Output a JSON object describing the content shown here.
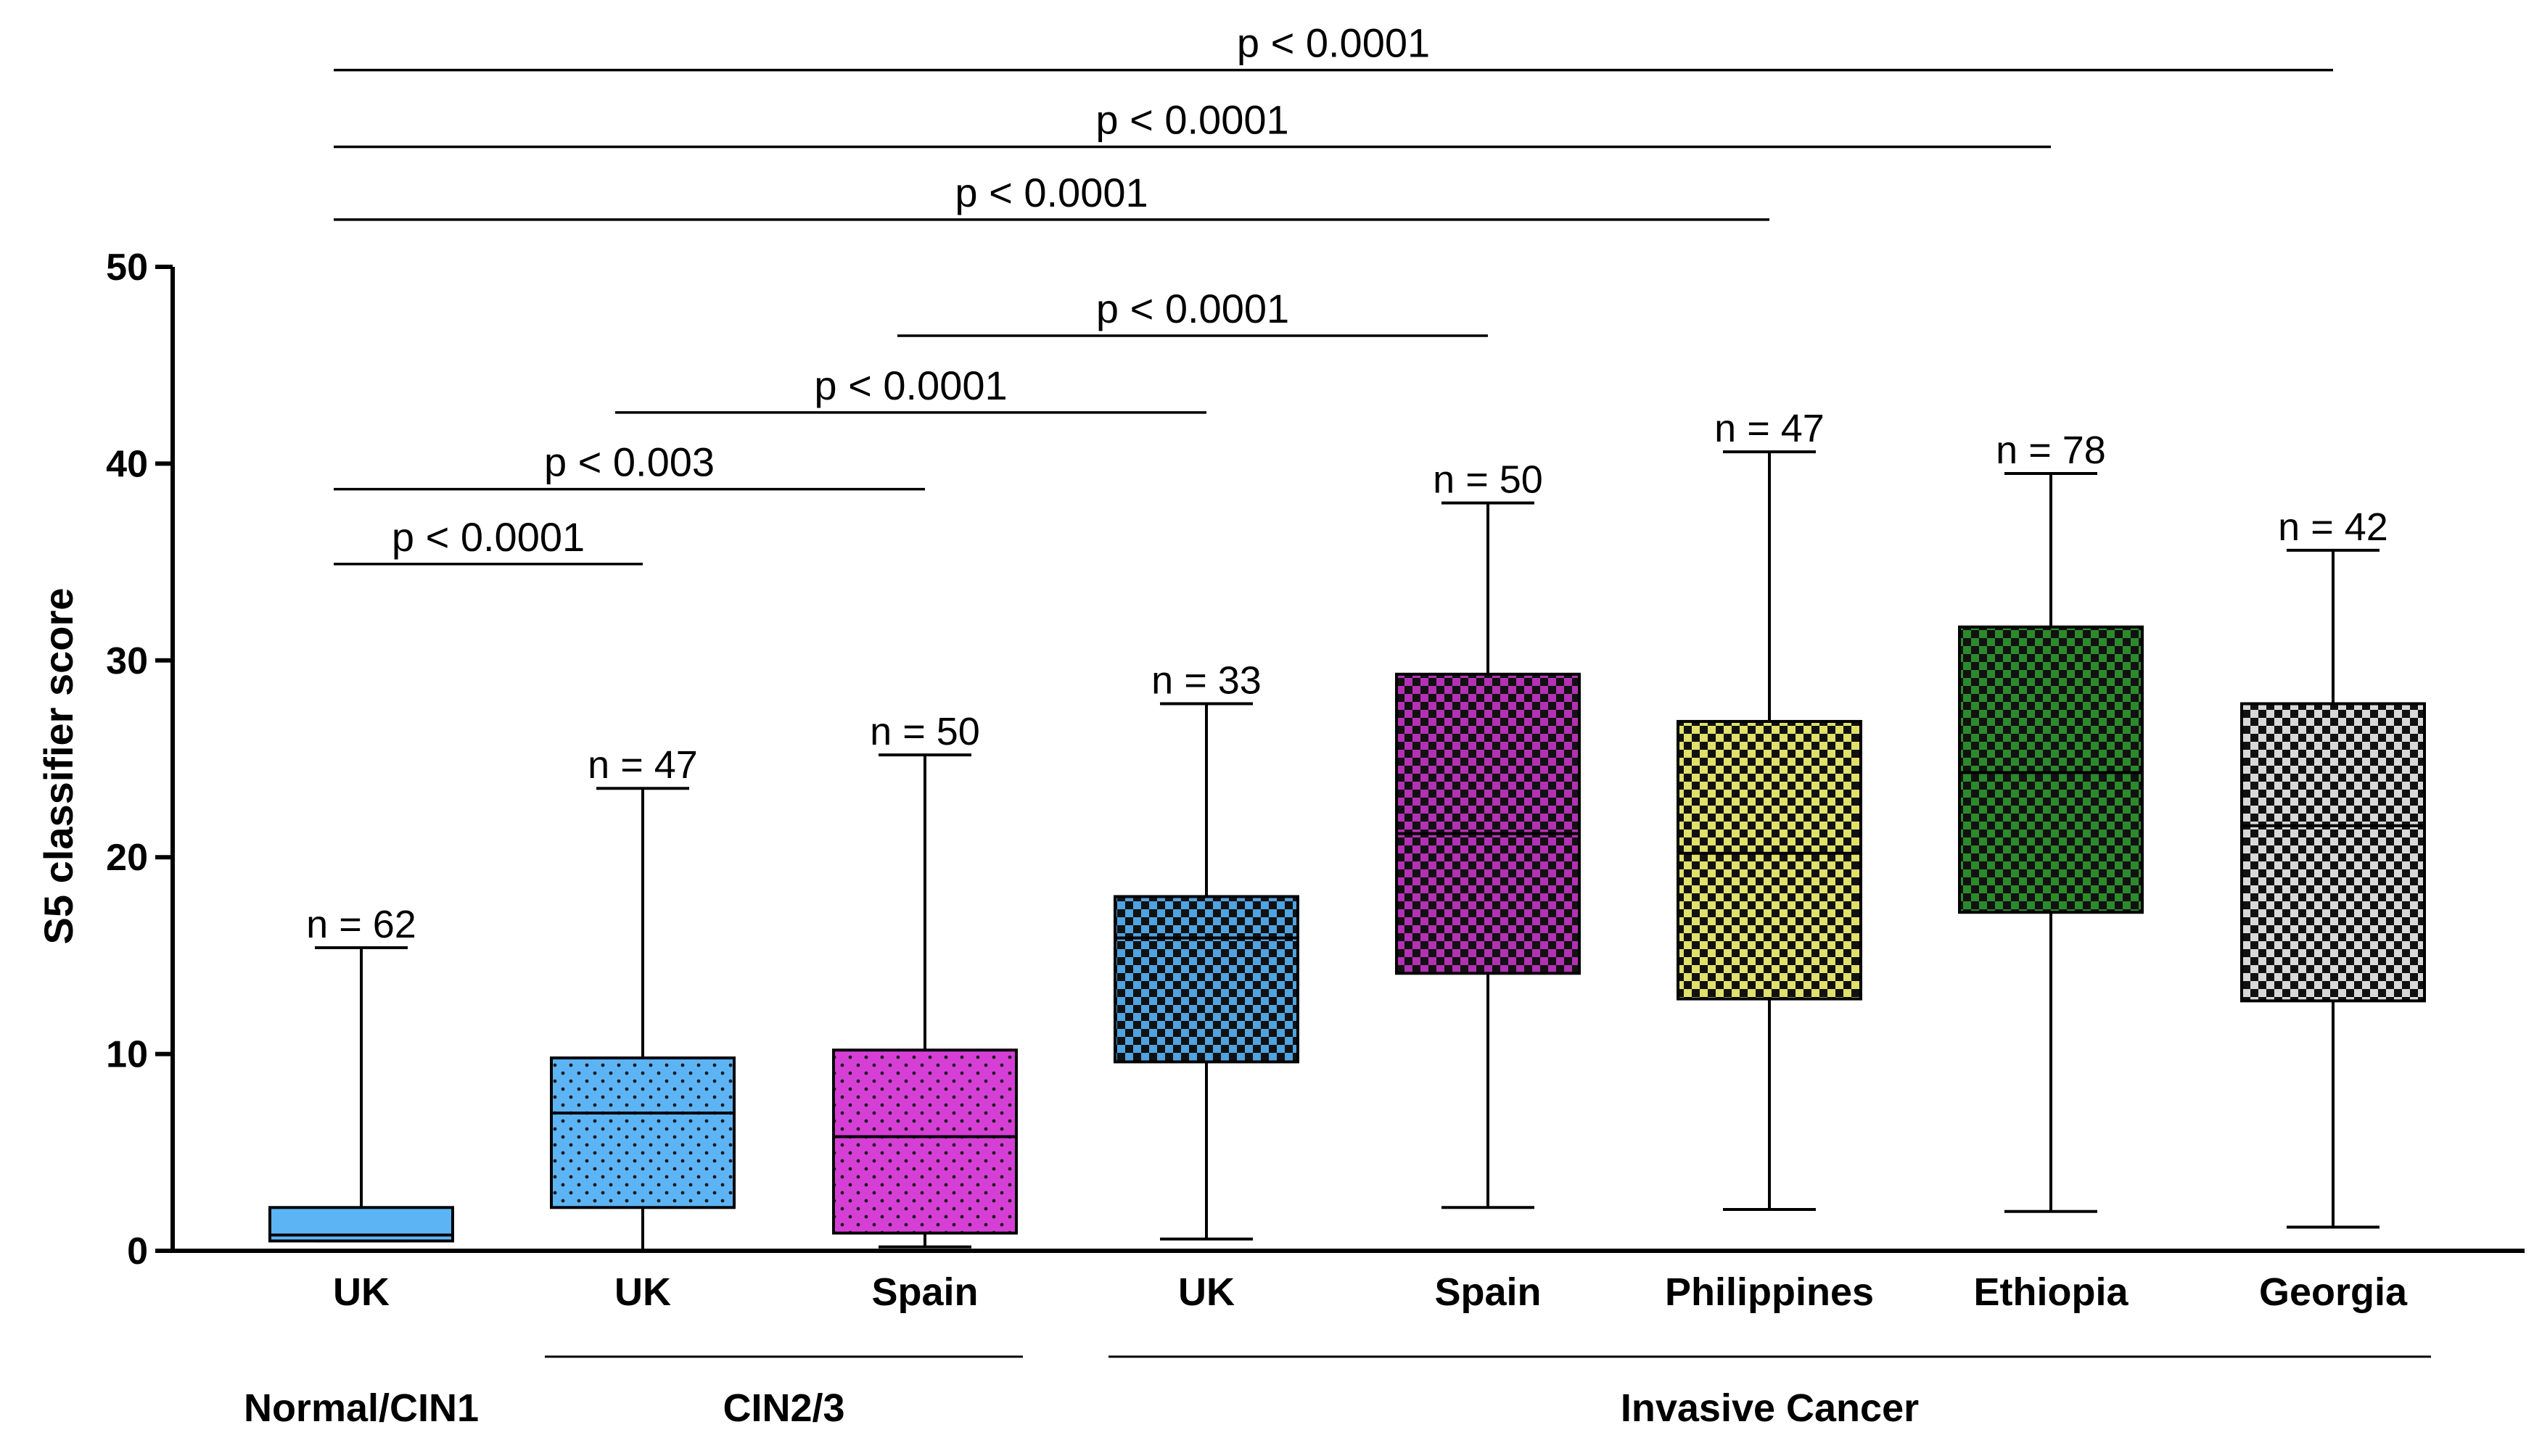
{
  "chart_data": {
    "type": "box",
    "ylabel": "S5 classifier score",
    "xlabel": "",
    "ylim": [
      0,
      50
    ],
    "yticks": [
      0,
      10,
      20,
      30,
      40,
      50
    ],
    "boxes": [
      {
        "label": "UK",
        "group": "Normal/CIN1",
        "n_label": "n = 62",
        "min": 0.5,
        "q1": 0.5,
        "median": 0.8,
        "q3": 2.2,
        "max": 15.4,
        "pattern": "solid",
        "color": "#5db4f5"
      },
      {
        "label": "UK",
        "group": "CIN2/3",
        "n_label": "n = 47",
        "min": 0.0,
        "q1": 2.2,
        "median": 7.0,
        "q3": 9.8,
        "max": 23.5,
        "pattern": "dots",
        "color": "#5db4f5"
      },
      {
        "label": "Spain",
        "group": "CIN2/3",
        "n_label": "n = 50",
        "min": 0.2,
        "q1": 0.9,
        "median": 5.8,
        "q3": 10.2,
        "max": 25.2,
        "pattern": "dots",
        "color": "#d63fd6"
      },
      {
        "label": "UK",
        "group": "Invasive Cancer",
        "n_label": "n = 33",
        "min": 0.6,
        "q1": 9.6,
        "median": 15.9,
        "q3": 18.0,
        "max": 27.8,
        "pattern": "checker",
        "color": "#4fa3e0"
      },
      {
        "label": "Spain",
        "group": "Invasive Cancer",
        "n_label": "n = 50",
        "min": 2.2,
        "q1": 14.1,
        "median": 21.2,
        "q3": 29.3,
        "max": 38.0,
        "pattern": "checker",
        "color": "#b430b4"
      },
      {
        "label": "Philippines",
        "group": "Invasive Cancer",
        "n_label": "n = 47",
        "min": 2.1,
        "q1": 12.8,
        "median": 20.2,
        "q3": 26.9,
        "max": 40.6,
        "pattern": "checker",
        "color": "#e0e06a"
      },
      {
        "label": "Ethiopia",
        "group": "Invasive Cancer",
        "n_label": "n = 78",
        "min": 2.0,
        "q1": 17.2,
        "median": 24.3,
        "q3": 31.7,
        "max": 39.5,
        "pattern": "checker",
        "color": "#2c8a2c"
      },
      {
        "label": "Georgia",
        "group": "Invasive Cancer",
        "n_label": "n = 42",
        "min": 1.2,
        "q1": 12.7,
        "median": 21.6,
        "q3": 27.8,
        "max": 35.6,
        "pattern": "checker",
        "color": "#d8d8d8"
      }
    ],
    "groups": [
      {
        "label": "Normal/CIN1",
        "from": 0,
        "to": 0,
        "underline": false
      },
      {
        "label": "CIN2/3",
        "from": 1,
        "to": 2,
        "underline": true
      },
      {
        "label": "Invasive Cancer",
        "from": 3,
        "to": 7,
        "underline": true
      }
    ],
    "comparisons": [
      {
        "from": 0,
        "to": 1,
        "y": 34.9,
        "label": "p < 0.0001"
      },
      {
        "from": 0,
        "to": 2,
        "y": 38.7,
        "label": "p < 0.003"
      },
      {
        "from": 1,
        "to": 3,
        "y": 42.6,
        "label": "p < 0.0001"
      },
      {
        "from": 2,
        "to": 4,
        "y": 46.5,
        "label": "p < 0.0001"
      },
      {
        "from": 0,
        "to": 5,
        "y": 52.4,
        "label": "p < 0.0001"
      },
      {
        "from": 0,
        "to": 6,
        "y": 56.1,
        "label": "p < 0.0001"
      },
      {
        "from": 0,
        "to": 7,
        "y": 60.0,
        "label": "p < 0.0001"
      }
    ]
  }
}
